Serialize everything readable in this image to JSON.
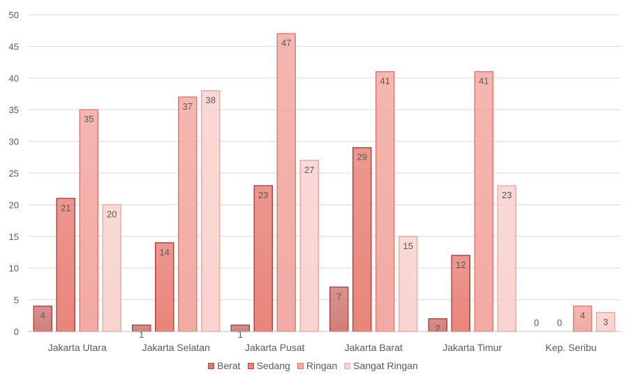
{
  "chart_data": {
    "type": "bar",
    "categories": [
      "Jakarta Utara",
      "Jakarta Selatan",
      "Jakarta Pusat",
      "Jakarta Barat",
      "Jakarta Timur",
      "Kep. Seribu"
    ],
    "series": [
      {
        "name": "Berat",
        "values": [
          4,
          1,
          1,
          7,
          2,
          0
        ],
        "color": "#d07f7b",
        "stroke": "#a94a45"
      },
      {
        "name": "Sedang",
        "values": [
          21,
          14,
          23,
          29,
          12,
          0
        ],
        "color": "#e9857b",
        "stroke": "#b5413a"
      },
      {
        "name": "Ringan",
        "values": [
          35,
          37,
          47,
          41,
          41,
          4
        ],
        "color": "#f2aaa3",
        "stroke": "#e27b70"
      },
      {
        "name": "Sangat Ringan",
        "values": [
          20,
          38,
          27,
          15,
          23,
          3
        ],
        "color": "#f8d3cf",
        "stroke": "#f1aaa3"
      }
    ],
    "y_ticks": [
      "0",
      "5",
      "10",
      "15",
      "20",
      "25",
      "30",
      "35",
      "40",
      "45",
      "50"
    ],
    "ylim": [
      0,
      50
    ],
    "grid": true,
    "legend_position": "bottom",
    "data_labels": true,
    "label_color": "#595959",
    "grid_color": "#d9d9d9"
  }
}
